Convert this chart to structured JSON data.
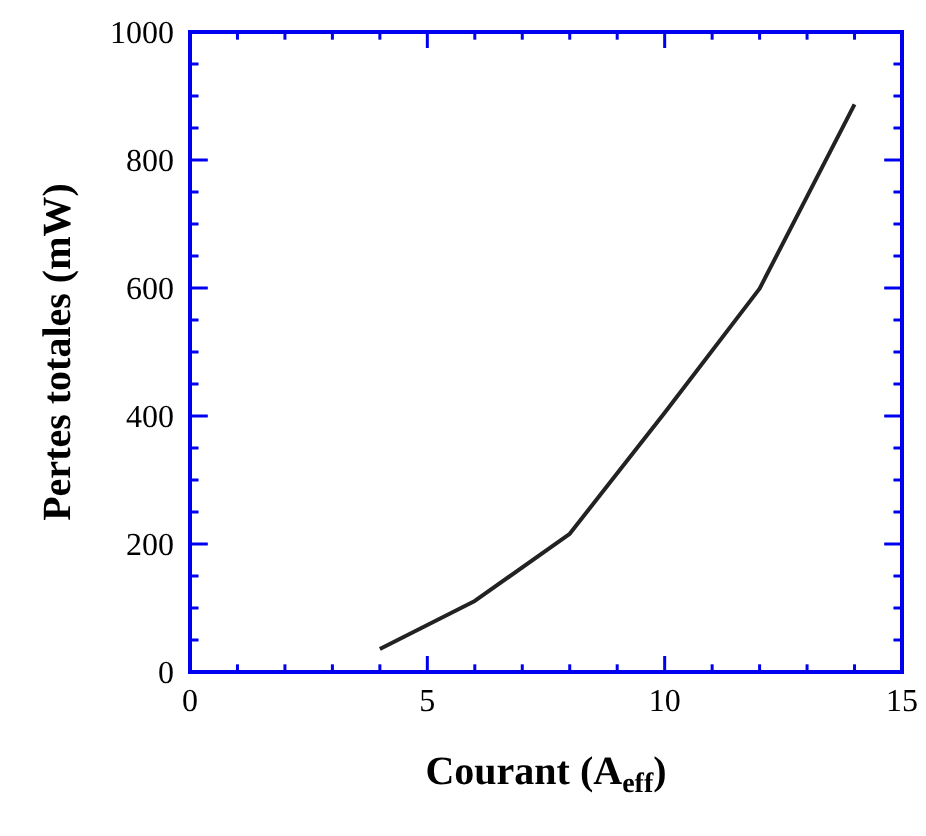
{
  "chart_data": {
    "type": "line",
    "xlabel": "Courant (A$_{eff}$)",
    "ylabel": "Pertes totales (mW)",
    "x": [
      4,
      6,
      8,
      10,
      12,
      14
    ],
    "series": [
      {
        "color": "#222222",
        "values": [
          36,
          111,
          216,
          405,
          599,
          887
        ]
      }
    ],
    "xlim": [
      0,
      15
    ],
    "xticks": [
      0,
      {
        "value": 1,
        "label": null
      },
      {
        "value": 2,
        "label": null
      },
      {
        "value": 3,
        "label": null
      },
      {
        "value": 4,
        "label": null
      },
      5,
      {
        "value": 6,
        "label": null
      },
      {
        "value": 7,
        "label": null
      },
      {
        "value": 8,
        "label": null
      },
      {
        "value": 9,
        "label": null
      },
      10,
      {
        "value": 11,
        "label": null
      },
      {
        "value": 12,
        "label": null
      },
      {
        "value": 13,
        "label": null
      },
      {
        "value": 14,
        "label": null
      },
      15
    ],
    "ylim": [
      0,
      1000
    ],
    "yticks": [
      0,
      {
        "value": 50,
        "label": null
      },
      {
        "value": 100,
        "label": null
      },
      {
        "value": 150,
        "label": null
      },
      200,
      {
        "value": 250,
        "label": null
      },
      {
        "value": 300,
        "label": null
      },
      {
        "value": 350,
        "label": null
      },
      400,
      {
        "value": 450,
        "label": null
      },
      {
        "value": 500,
        "label": null
      },
      {
        "value": 550,
        "label": null
      },
      600,
      {
        "value": 650,
        "label": null
      },
      {
        "value": 700,
        "label": null
      },
      {
        "value": 750,
        "label": null
      },
      800,
      {
        "value": 850,
        "label": null
      },
      {
        "value": 900,
        "label": null
      },
      {
        "value": 950,
        "label": null
      },
      1000
    ],
    "grid": false,
    "legend": false,
    "marker": "none",
    "line_style": "solid"
  }
}
